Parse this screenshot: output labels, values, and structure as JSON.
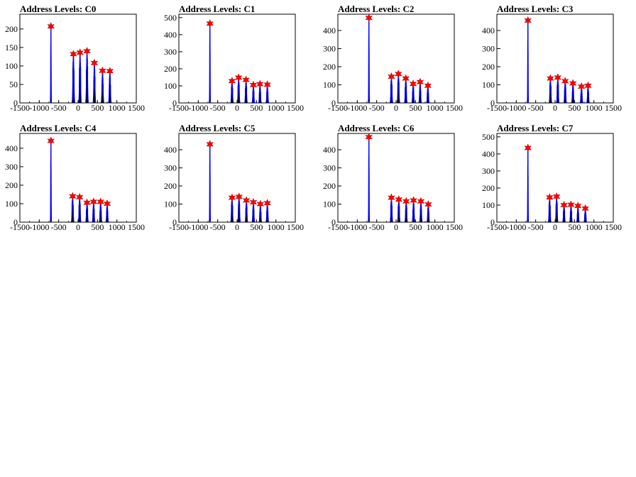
{
  "colors": {
    "histogram": "#000000",
    "fit": "#0000ff",
    "marker": "#ff0000",
    "background": "#ffffff"
  },
  "chart_data": [
    {
      "type": "bar",
      "title": "Address Levels: C0",
      "xlim": [
        -1500,
        1500
      ],
      "ylim": [
        0,
        240
      ],
      "xticks": [
        -1500,
        -1000,
        -500,
        0,
        500,
        1000,
        1500
      ],
      "yticks": [
        0,
        50,
        100,
        150,
        200
      ],
      "peaks": [
        {
          "x": -700,
          "y": 207
        },
        {
          "x": -120,
          "y": 132
        },
        {
          "x": 50,
          "y": 136
        },
        {
          "x": 230,
          "y": 140
        },
        {
          "x": 420,
          "y": 108
        },
        {
          "x": 630,
          "y": 87
        },
        {
          "x": 820,
          "y": 86
        }
      ]
    },
    {
      "type": "bar",
      "title": "Address Levels: C1",
      "xlim": [
        -1500,
        1500
      ],
      "ylim": [
        0,
        520
      ],
      "xticks": [
        -1500,
        -1000,
        -500,
        0,
        500,
        1000,
        1500
      ],
      "yticks": [
        0,
        100,
        200,
        300,
        400,
        500
      ],
      "peaks": [
        {
          "x": -700,
          "y": 465
        },
        {
          "x": -130,
          "y": 128
        },
        {
          "x": 40,
          "y": 148
        },
        {
          "x": 230,
          "y": 135
        },
        {
          "x": 420,
          "y": 105
        },
        {
          "x": 590,
          "y": 110
        },
        {
          "x": 780,
          "y": 107
        }
      ]
    },
    {
      "type": "bar",
      "title": "Address Levels: C2",
      "xlim": [
        -1500,
        1500
      ],
      "ylim": [
        0,
        490
      ],
      "xticks": [
        -1500,
        -1000,
        -500,
        0,
        500,
        1000,
        1500
      ],
      "yticks": [
        0,
        100,
        200,
        300,
        400
      ],
      "peaks": [
        {
          "x": -700,
          "y": 470
        },
        {
          "x": -120,
          "y": 145
        },
        {
          "x": 60,
          "y": 160
        },
        {
          "x": 250,
          "y": 135
        },
        {
          "x": 440,
          "y": 105
        },
        {
          "x": 620,
          "y": 115
        },
        {
          "x": 820,
          "y": 95
        }
      ]
    },
    {
      "type": "bar",
      "title": "Address Levels: C3",
      "xlim": [
        -1500,
        1500
      ],
      "ylim": [
        0,
        490
      ],
      "xticks": [
        -1500,
        -1000,
        -500,
        0,
        500,
        1000,
        1500
      ],
      "yticks": [
        0,
        100,
        200,
        300,
        400
      ],
      "peaks": [
        {
          "x": -700,
          "y": 455
        },
        {
          "x": -120,
          "y": 135
        },
        {
          "x": 70,
          "y": 140
        },
        {
          "x": 260,
          "y": 120
        },
        {
          "x": 460,
          "y": 108
        },
        {
          "x": 680,
          "y": 90
        },
        {
          "x": 850,
          "y": 95
        }
      ]
    },
    {
      "type": "bar",
      "title": "Address Levels: C4",
      "xlim": [
        -1500,
        1500
      ],
      "ylim": [
        0,
        480
      ],
      "xticks": [
        -1500,
        -1000,
        -500,
        0,
        500,
        1000,
        1500
      ],
      "yticks": [
        0,
        100,
        200,
        300,
        400
      ],
      "peaks": [
        {
          "x": -700,
          "y": 440
        },
        {
          "x": -140,
          "y": 140
        },
        {
          "x": 40,
          "y": 135
        },
        {
          "x": 230,
          "y": 105
        },
        {
          "x": 400,
          "y": 110
        },
        {
          "x": 580,
          "y": 110
        },
        {
          "x": 750,
          "y": 100
        }
      ]
    },
    {
      "type": "bar",
      "title": "Address Levels: C5",
      "xlim": [
        -1500,
        1500
      ],
      "ylim": [
        0,
        490
      ],
      "xticks": [
        -1500,
        -1000,
        -500,
        0,
        500,
        1000,
        1500
      ],
      "yticks": [
        0,
        100,
        200,
        300,
        400
      ],
      "peaks": [
        {
          "x": -700,
          "y": 430
        },
        {
          "x": -130,
          "y": 135
        },
        {
          "x": 50,
          "y": 140
        },
        {
          "x": 240,
          "y": 120
        },
        {
          "x": 420,
          "y": 110
        },
        {
          "x": 600,
          "y": 100
        },
        {
          "x": 780,
          "y": 105
        }
      ]
    },
    {
      "type": "bar",
      "title": "Address Levels: C6",
      "xlim": [
        -1500,
        1500
      ],
      "ylim": [
        0,
        490
      ],
      "xticks": [
        -1500,
        -1000,
        -500,
        0,
        500,
        1000,
        1500
      ],
      "yticks": [
        0,
        100,
        200,
        300,
        400
      ],
      "peaks": [
        {
          "x": -700,
          "y": 470
        },
        {
          "x": -120,
          "y": 135
        },
        {
          "x": 70,
          "y": 125
        },
        {
          "x": 260,
          "y": 115
        },
        {
          "x": 450,
          "y": 120
        },
        {
          "x": 640,
          "y": 115
        },
        {
          "x": 830,
          "y": 98
        }
      ]
    },
    {
      "type": "bar",
      "title": "Address Levels: C7",
      "xlim": [
        -1500,
        1500
      ],
      "ylim": [
        0,
        520
      ],
      "xticks": [
        -1500,
        -1000,
        -500,
        0,
        500,
        1000,
        1500
      ],
      "yticks": [
        0,
        100,
        200,
        300,
        400,
        500
      ],
      "peaks": [
        {
          "x": -700,
          "y": 435
        },
        {
          "x": -140,
          "y": 145
        },
        {
          "x": 40,
          "y": 150
        },
        {
          "x": 230,
          "y": 100
        },
        {
          "x": 410,
          "y": 102
        },
        {
          "x": 590,
          "y": 95
        },
        {
          "x": 780,
          "y": 80
        }
      ]
    }
  ]
}
